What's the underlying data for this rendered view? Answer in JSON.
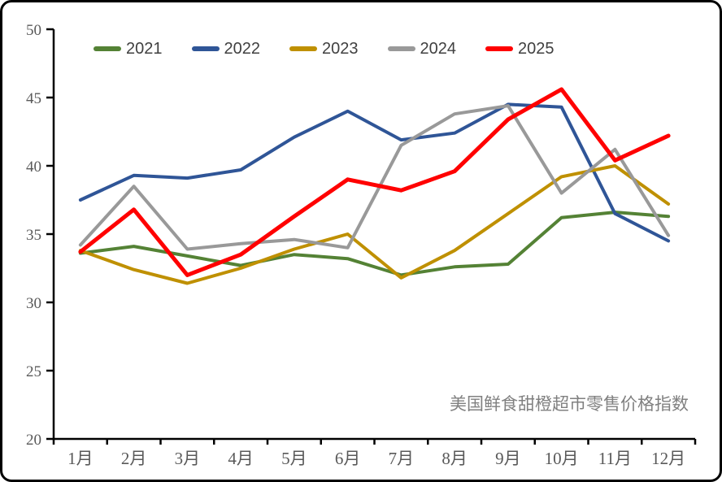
{
  "chart_data": {
    "type": "line",
    "title": "",
    "annotation": "美国鲜食甜橙超市零售价格指数",
    "categories": [
      "1月",
      "2月",
      "3月",
      "4月",
      "5月",
      "6月",
      "7月",
      "8月",
      "9月",
      "10月",
      "11月",
      "12月"
    ],
    "series": [
      {
        "name": "2021",
        "color": "#548235",
        "stroke_width": 4,
        "values": [
          33.6,
          34.1,
          33.4,
          32.7,
          33.5,
          33.2,
          32.0,
          32.6,
          32.8,
          36.2,
          36.6,
          36.3
        ]
      },
      {
        "name": "2022",
        "color": "#2F5597",
        "stroke_width": 4,
        "values": [
          37.5,
          39.3,
          39.1,
          39.7,
          42.1,
          44.0,
          41.9,
          42.4,
          44.5,
          44.3,
          36.5,
          34.5
        ]
      },
      {
        "name": "2023",
        "color": "#BF9000",
        "stroke_width": 4,
        "values": [
          33.8,
          32.4,
          31.4,
          32.5,
          33.9,
          35.0,
          31.8,
          33.8,
          36.5,
          39.2,
          40.0,
          37.2
        ]
      },
      {
        "name": "2024",
        "color": "#999999",
        "stroke_width": 4,
        "values": [
          34.2,
          38.5,
          33.9,
          34.3,
          34.6,
          34.0,
          41.5,
          43.8,
          44.4,
          38.0,
          41.2,
          34.9
        ]
      },
      {
        "name": "2025",
        "color": "#FF0000",
        "stroke_width": 5,
        "values": [
          33.7,
          36.8,
          32.0,
          33.5,
          36.3,
          39.0,
          38.2,
          39.6,
          43.4,
          45.6,
          40.4,
          42.2
        ]
      }
    ],
    "ylim": [
      20,
      50
    ],
    "ytick_step": 5,
    "grid": false,
    "legend_position": "top",
    "axis_color": "#000000",
    "tick_label_color": "#595959",
    "annotation_color": "#808080",
    "legend_text_color": "#404040"
  }
}
